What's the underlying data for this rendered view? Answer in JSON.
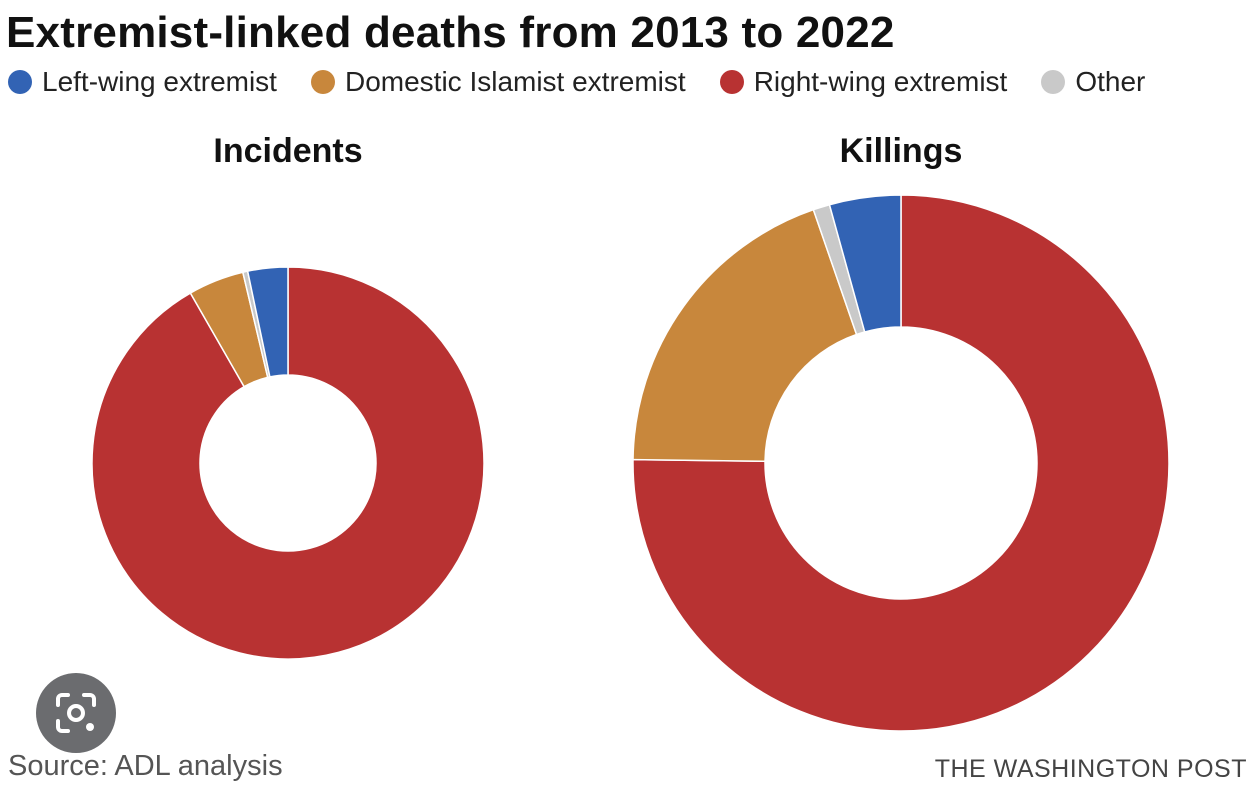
{
  "header": {
    "title": "Extremist-linked deaths from 2013 to 2022"
  },
  "legend": {
    "items": [
      {
        "label": "Left-wing extremist",
        "color": "#3263b4"
      },
      {
        "label": "Domestic Islamist extremist",
        "color": "#c8873c"
      },
      {
        "label": "Right-wing extremist",
        "color": "#b83232"
      },
      {
        "label": "Other",
        "color": "#c9c9c9"
      }
    ]
  },
  "chart_data": [
    {
      "type": "pie",
      "title": "Incidents",
      "categories": [
        "Right-wing extremist",
        "Domestic Islamist extremist",
        "Other",
        "Left-wing extremist"
      ],
      "values": [
        91.7,
        4.6,
        0.4,
        3.3
      ],
      "colors": [
        "#b83232",
        "#c8873c",
        "#c9c9c9",
        "#3263b4"
      ],
      "legend": "top-left",
      "grid": false
    },
    {
      "type": "pie",
      "title": "Killings",
      "categories": [
        "Right-wing extremist",
        "Domestic Islamist extremist",
        "Other",
        "Left-wing extremist"
      ],
      "values": [
        75.2,
        19.5,
        1.0,
        4.3
      ],
      "colors": [
        "#b83232",
        "#c8873c",
        "#c9c9c9",
        "#3263b4"
      ],
      "legend": "top-left",
      "grid": false
    }
  ],
  "footer": {
    "source": "Source: ADL analysis",
    "credit": "THE WASHINGTON POST"
  },
  "overlay": {
    "icon": "lens-camera-icon"
  }
}
